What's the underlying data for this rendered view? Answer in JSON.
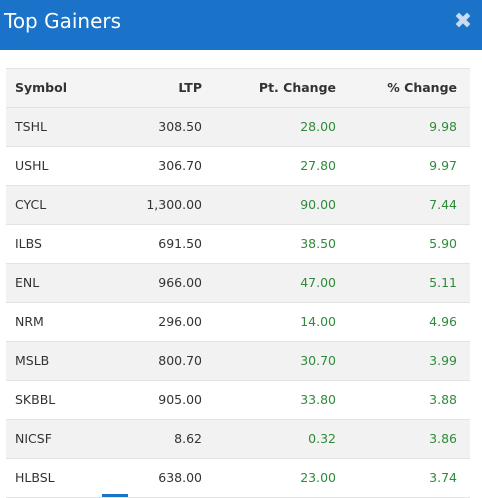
{
  "header": {
    "title": "Top Gainers",
    "close_symbol": "✖"
  },
  "table": {
    "columns": [
      "Symbol",
      "LTP",
      "Pt. Change",
      "% Change"
    ],
    "rows": [
      {
        "symbol": "TSHL",
        "ltp": "308.50",
        "pt_change": "28.00",
        "pct_change": "9.98"
      },
      {
        "symbol": "USHL",
        "ltp": "306.70",
        "pt_change": "27.80",
        "pct_change": "9.97"
      },
      {
        "symbol": "CYCL",
        "ltp": "1,300.00",
        "pt_change": "90.00",
        "pct_change": "7.44"
      },
      {
        "symbol": "ILBS",
        "ltp": "691.50",
        "pt_change": "38.50",
        "pct_change": "5.90"
      },
      {
        "symbol": "ENL",
        "ltp": "966.00",
        "pt_change": "47.00",
        "pct_change": "5.11"
      },
      {
        "symbol": "NRM",
        "ltp": "296.00",
        "pt_change": "14.00",
        "pct_change": "4.96"
      },
      {
        "symbol": "MSLB",
        "ltp": "800.70",
        "pt_change": "30.70",
        "pct_change": "3.99"
      },
      {
        "symbol": "SKBBL",
        "ltp": "905.00",
        "pt_change": "33.80",
        "pct_change": "3.88"
      },
      {
        "symbol": "NICSF",
        "ltp": "8.62",
        "pt_change": "0.32",
        "pct_change": "3.86"
      },
      {
        "symbol": "HLBSL",
        "ltp": "638.00",
        "pt_change": "23.00",
        "pct_change": "3.74"
      }
    ]
  },
  "colors": {
    "header_bg": "#1a73c9",
    "positive": "#2e8b3a"
  }
}
